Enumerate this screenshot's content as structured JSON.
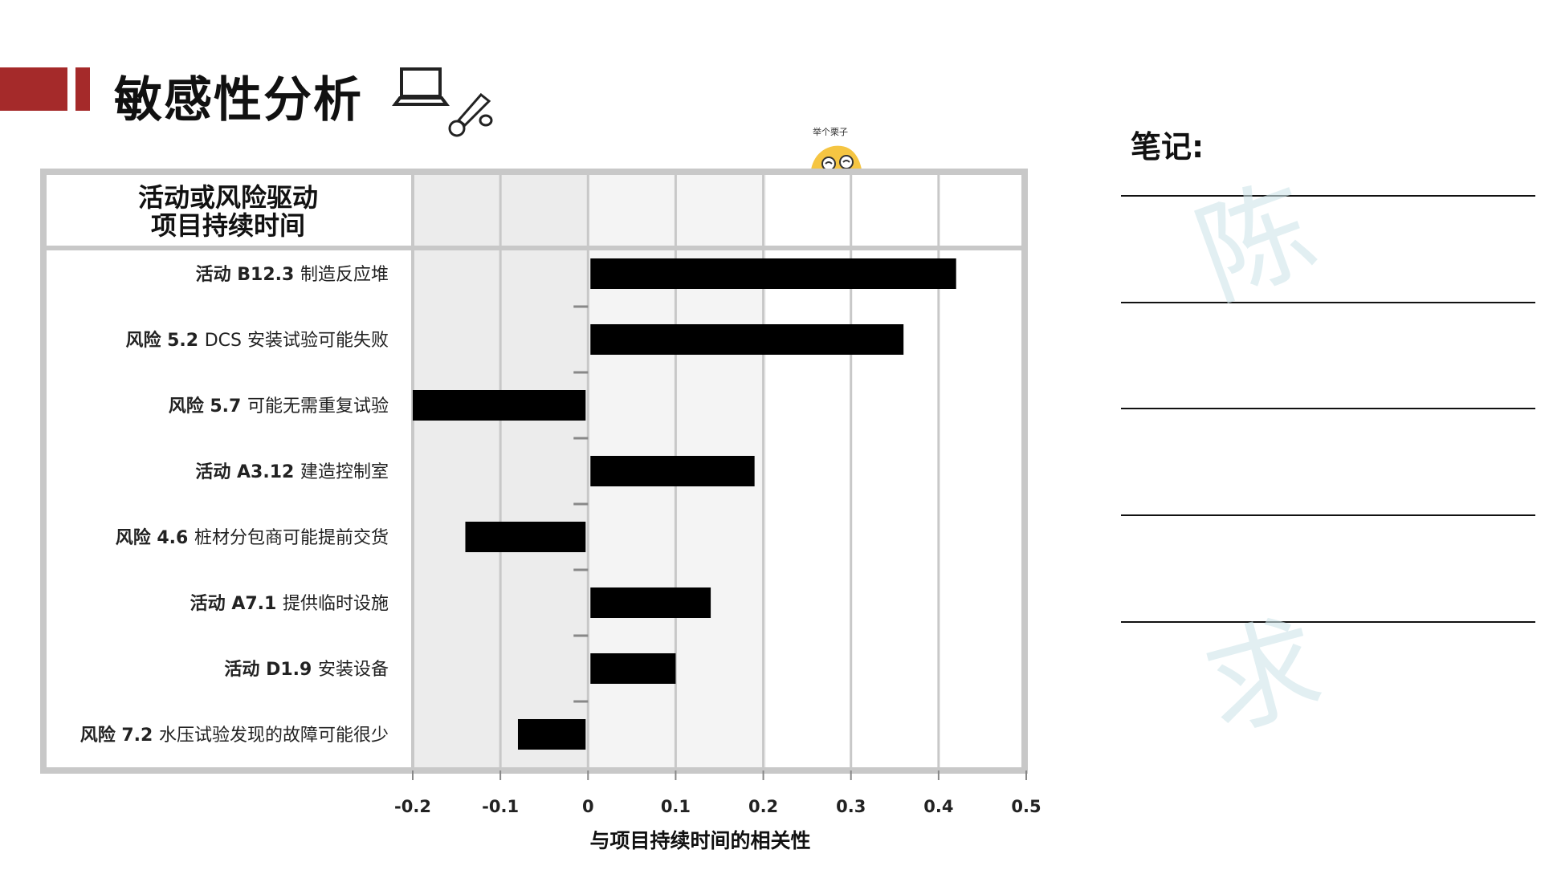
{
  "page": {
    "title": "敏感性分析",
    "notes_label": "笔记:",
    "mascot_caption": "举个栗子"
  },
  "colors": {
    "accent": "#a52a2a",
    "bar": "#000000",
    "panel_gray": "#c8c8c8",
    "shade": "#ececec"
  },
  "icons": [
    "laptop-icon",
    "screwdriver-icon",
    "mascot-icon"
  ],
  "chart_data": {
    "type": "bar",
    "orientation": "horizontal",
    "header": [
      "活动或风险驱动",
      "项目持续时间"
    ],
    "xlabel": "与项目持续时间的相关性",
    "xlim": [
      -0.2,
      0.5
    ],
    "xticks": [
      "-0.2",
      "-0.1",
      "0",
      "0.1",
      "0.2",
      "0.3",
      "0.4",
      "0.5"
    ],
    "grid": true,
    "rows": [
      {
        "tag": "活动 B12.3",
        "text": "制造反应堆",
        "value": 0.42
      },
      {
        "tag": "风险 5.2",
        "text": "DCS 安装试验可能失败",
        "value": 0.36
      },
      {
        "tag": "风险 5.7",
        "text": "可能无需重复试验",
        "value": -0.2
      },
      {
        "tag": "活动 A3.12",
        "text": "建造控制室",
        "value": 0.19
      },
      {
        "tag": "风险 4.6",
        "text": "桩材分包商可能提前交货",
        "value": -0.14
      },
      {
        "tag": "活动 A7.1",
        "text": "提供临时设施",
        "value": 0.14
      },
      {
        "tag": "活动 D1.9",
        "text": "安装设备",
        "value": 0.1
      },
      {
        "tag": "风险 7.2",
        "text": "水压试验发现的故障可能很少",
        "value": -0.08
      }
    ]
  }
}
